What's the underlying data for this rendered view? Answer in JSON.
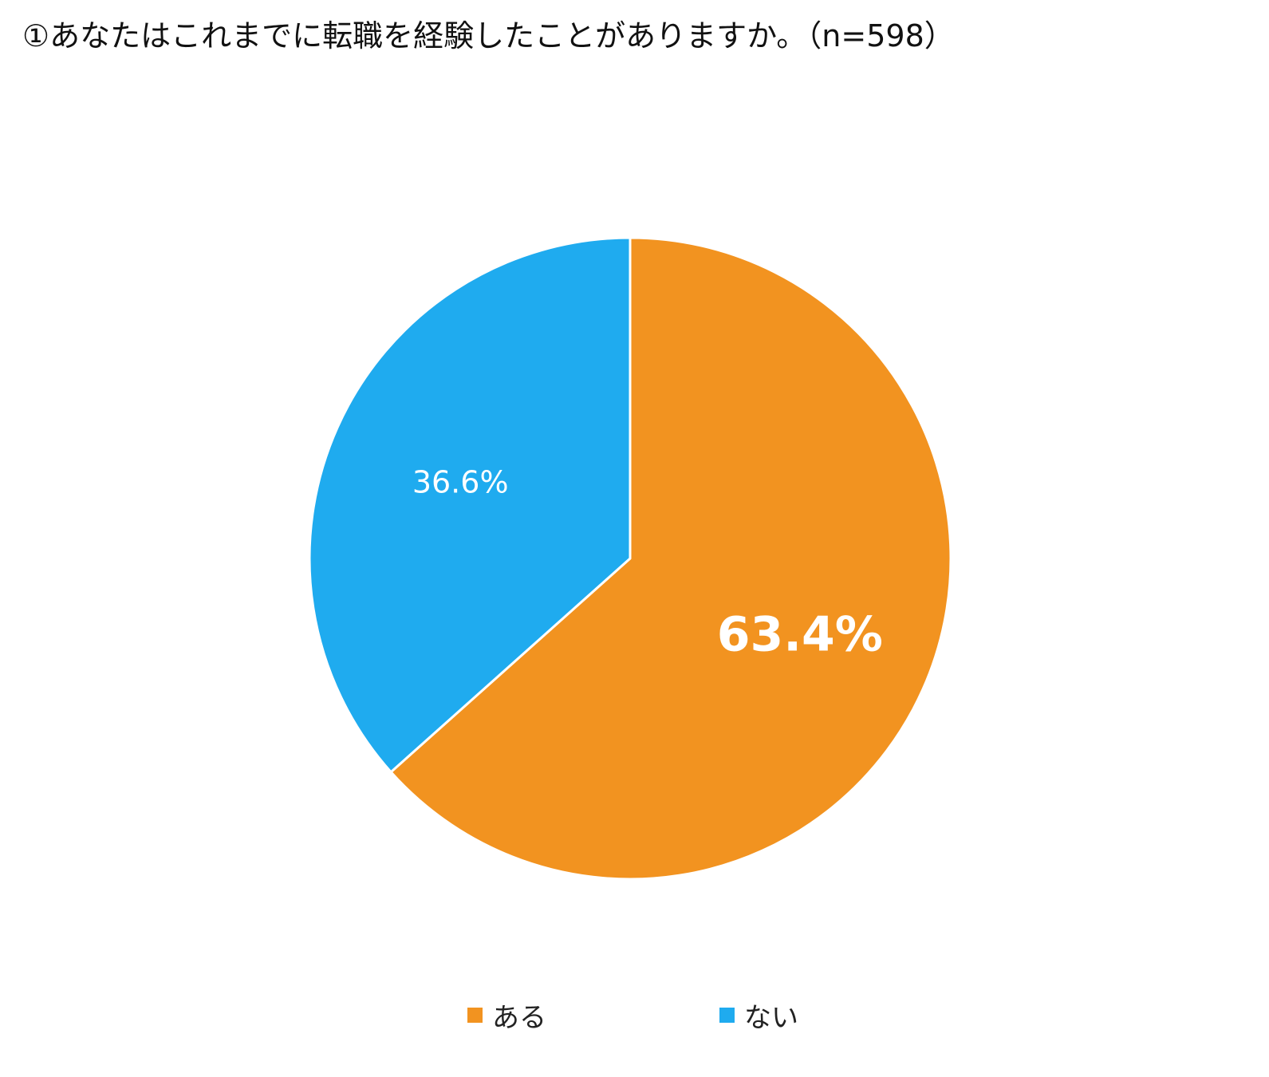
{
  "chart_data": {
    "type": "pie",
    "title": "①あなたはこれまでに転職を経験したことがありますか。（n=598）",
    "slices": [
      {
        "label": "ある",
        "value": 63.4,
        "display": "63.4%",
        "color": "#F29320"
      },
      {
        "label": "ない",
        "value": 36.6,
        "display": "36.6%",
        "color": "#1FABEF"
      }
    ],
    "start_angle": "12 o'clock",
    "direction": "clockwise",
    "legend_position": "bottom"
  }
}
